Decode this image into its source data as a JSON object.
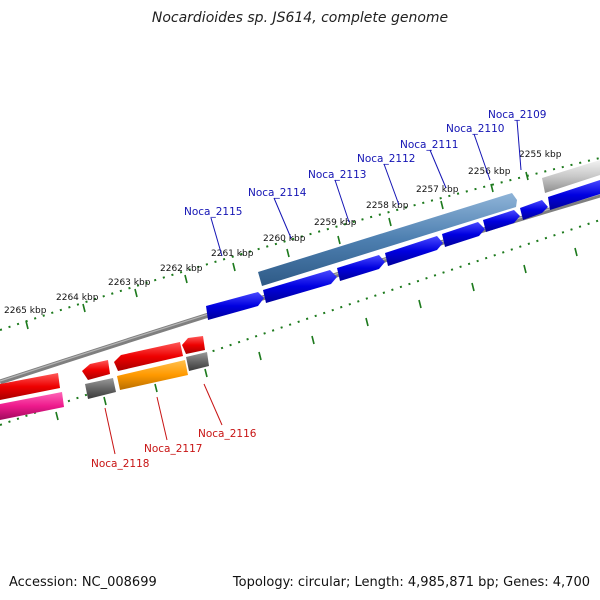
{
  "title": "Nocardioides sp. JS614, complete genome",
  "footer": {
    "accession": "Accession: NC_008699",
    "stats": "Topology: circular; Length: 4,985,871 bp; Genes: 4,700"
  },
  "colors": {
    "backbone": "#7f7f7f",
    "ticks": "#1d7a1d",
    "forward_label": "#1414b4",
    "reverse_label": "#c81414"
  },
  "scale_labels": [
    "2255 kbp",
    "2256 kbp",
    "2257 kbp",
    "2258 kbp",
    "2259 kbp",
    "2260 kbp",
    "2261 kbp",
    "2262 kbp",
    "2263 kbp",
    "2264 kbp",
    "2265 kbp"
  ],
  "genes": [
    {
      "label": "Noca_2109",
      "strand": "forward"
    },
    {
      "label": "Noca_2110",
      "strand": "forward"
    },
    {
      "label": "Noca_2111",
      "strand": "forward"
    },
    {
      "label": "Noca_2112",
      "strand": "forward"
    },
    {
      "label": "Noca_2113",
      "strand": "forward"
    },
    {
      "label": "Noca_2114",
      "strand": "forward"
    },
    {
      "label": "Noca_2115",
      "strand": "forward"
    },
    {
      "label": "Noca_2116",
      "strand": "reverse"
    },
    {
      "label": "Noca_2117",
      "strand": "reverse"
    },
    {
      "label": "Noca_2118",
      "strand": "reverse"
    }
  ]
}
